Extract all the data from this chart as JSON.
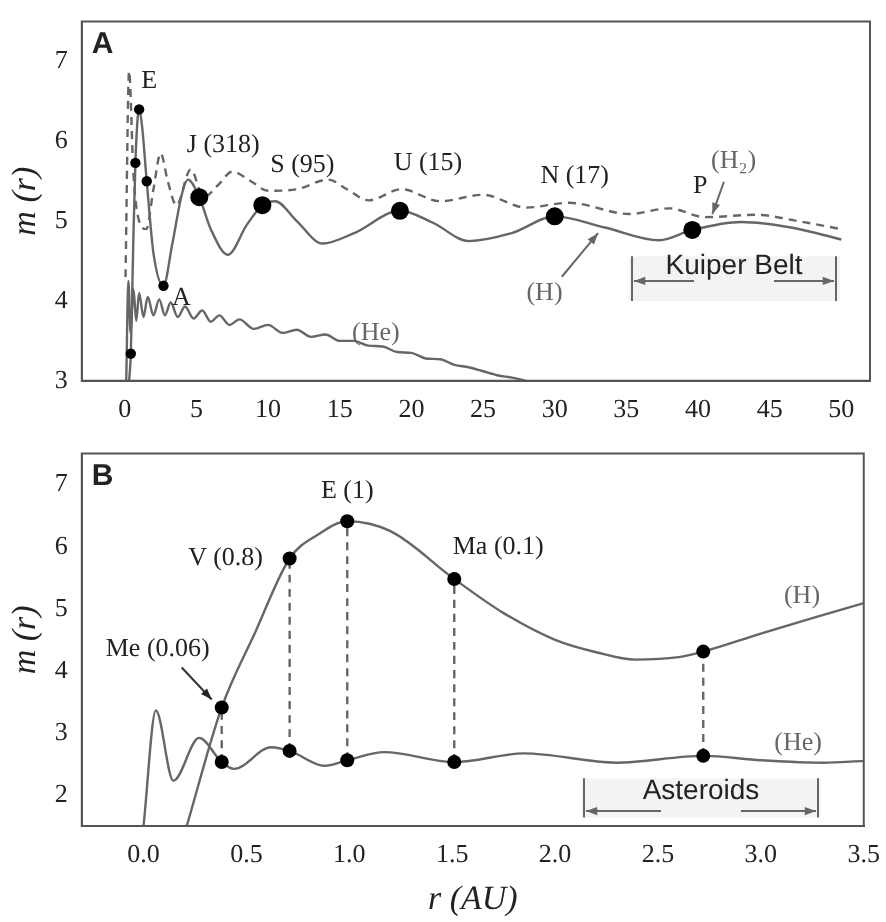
{
  "chart_data": [
    {
      "type": "line",
      "title": "A",
      "ylabel": "m (r)",
      "xlim": [
        -3,
        52
      ],
      "ylim": [
        3,
        7.5
      ],
      "xticks": [
        0,
        5,
        10,
        15,
        20,
        25,
        30,
        35,
        40,
        45,
        50
      ],
      "yticks": [
        3,
        4,
        5,
        6,
        7
      ],
      "grid": false,
      "legend": false,
      "series": [
        {
          "name": "(H)",
          "type": "line",
          "color": "#666666",
          "line_style": "solid",
          "x": [
            0.3,
            0.42,
            0.6,
            0.74,
            0.9,
            1.0,
            1.2,
            1.53,
            2.0,
            2.7,
            3.3,
            4.0,
            4.4,
            5.2,
            6.0,
            7.2,
            8.5,
            9.6,
            10.5,
            12.0,
            13.8,
            16.0,
            19.2,
            21.5,
            24.0,
            27.0,
            30.0,
            33.5,
            37.3,
            39.6,
            43.0,
            46.5,
            50
          ],
          "values": [
            3.0,
            3.34,
            4.8,
            5.73,
            6.3,
            6.4,
            6.2,
            5.5,
            4.6,
            4.19,
            4.7,
            5.35,
            5.52,
            5.3,
            4.9,
            4.58,
            4.95,
            5.2,
            5.25,
            5.0,
            4.72,
            4.85,
            5.13,
            4.98,
            4.75,
            4.85,
            5.06,
            4.92,
            4.76,
            4.89,
            4.99,
            4.92,
            4.77
          ]
        },
        {
          "name": "(H₂)",
          "type": "line",
          "color": "#666666",
          "line_style": "dashed",
          "x": [
            0.05,
            0.3,
            0.6,
            1.0,
            1.5,
            2.0,
            2.5,
            3.0,
            3.6,
            4.6,
            5.5,
            6.5,
            7.5,
            8.8,
            10.0,
            12.0,
            14.2,
            15.5,
            17.0,
            19.3,
            22.0,
            25.0,
            28.0,
            31.0,
            35.2,
            38.0,
            40.5,
            44.0,
            47.0,
            50
          ],
          "values": [
            4.3,
            6.88,
            5.6,
            5.0,
            4.9,
            5.4,
            5.85,
            5.5,
            5.2,
            5.65,
            5.3,
            5.45,
            5.62,
            5.5,
            5.38,
            5.4,
            5.52,
            5.4,
            5.26,
            5.4,
            5.25,
            5.33,
            5.17,
            5.23,
            5.09,
            5.16,
            5.05,
            5.08,
            5.0,
            4.9
          ]
        },
        {
          "name": "(He)",
          "type": "line",
          "color": "#666666",
          "line_style": "solid",
          "x": [
            0.1,
            0.25,
            0.4,
            0.6,
            0.8,
            1.0,
            1.3,
            1.6,
            2.0,
            2.4,
            2.8,
            3.2,
            3.7,
            4.2,
            4.8,
            5.4,
            6.0,
            6.6,
            7.3,
            8.0,
            9.0,
            10.0,
            11.0,
            12.0,
            13.0,
            14.0,
            15.0,
            16.0,
            17.0,
            18.0,
            19.0,
            20.0,
            21.0,
            22.0,
            23.0,
            24.0,
            25.0,
            26.0,
            27.0,
            28.0
          ],
          "values": [
            3.0,
            4.25,
            3.6,
            4.15,
            3.75,
            4.1,
            3.8,
            4.05,
            3.82,
            4.02,
            3.82,
            3.98,
            3.8,
            3.93,
            3.78,
            3.88,
            3.74,
            3.82,
            3.7,
            3.77,
            3.65,
            3.7,
            3.6,
            3.64,
            3.55,
            3.58,
            3.5,
            3.5,
            3.44,
            3.43,
            3.36,
            3.35,
            3.28,
            3.27,
            3.2,
            3.17,
            3.12,
            3.07,
            3.04,
            3.0
          ]
        },
        {
          "type": "scatter",
          "color": "#000000",
          "marker": "circle",
          "x": [
            0.42,
            0.74,
            1.0,
            1.53,
            2.7
          ],
          "values": [
            3.34,
            5.73,
            6.4,
            5.5,
            4.19
          ]
        },
        {
          "type": "scatter",
          "color": "#000000",
          "marker": "circle",
          "x": [
            5.2,
            9.6,
            19.2,
            30.0,
            39.6
          ],
          "values": [
            5.3,
            5.2,
            5.13,
            5.06,
            4.89
          ]
        }
      ],
      "annotations": [
        {
          "text": "E",
          "x": 1.0,
          "y": 6.4
        },
        {
          "text": "A",
          "x": 2.7,
          "y": 4.19
        },
        {
          "text": "J (318)",
          "x": 5.2,
          "y": 5.3
        },
        {
          "text": "S (95)",
          "x": 9.6,
          "y": 5.2
        },
        {
          "text": "U (15)",
          "x": 19.2,
          "y": 5.13
        },
        {
          "text": "N (17)",
          "x": 30.0,
          "y": 5.06
        },
        {
          "text": "P",
          "x": 39.6,
          "y": 4.89
        }
      ],
      "bands": [
        {
          "axis": "x",
          "from": 35.2,
          "to": 49.9,
          "label": "Kuiper Belt"
        }
      ]
    },
    {
      "type": "line",
      "title": "B",
      "xlabel": "r (AU)",
      "ylabel": "m (r)",
      "xlim": [
        -0.3,
        3.5
      ],
      "ylim": [
        1.5,
        7.5
      ],
      "xticks": [
        {
          "value": 0,
          "label": "0.0"
        },
        0.5,
        {
          "value": 1,
          "label": "1.0"
        },
        1.5,
        {
          "value": 2,
          "label": "2.0"
        },
        2.5,
        {
          "value": 3,
          "label": "3.0"
        },
        3.5
      ],
      "yticks": [
        2,
        3,
        4,
        5,
        6,
        7
      ],
      "grid": false,
      "legend": false,
      "series": [
        {
          "name": "(H)",
          "type": "line",
          "color": "#666666",
          "line_style": "solid",
          "x": [
            0.21,
            0.38,
            0.54,
            0.71,
            0.85,
            0.99,
            1.2,
            1.51,
            1.75,
            2.0,
            2.2,
            2.39,
            2.6,
            2.72,
            3.0,
            3.25,
            3.5
          ],
          "values": [
            1.5,
            3.41,
            4.6,
            5.81,
            6.2,
            6.41,
            6.25,
            5.48,
            4.93,
            4.5,
            4.3,
            4.18,
            4.22,
            4.31,
            4.6,
            4.85,
            5.09
          ]
        },
        {
          "name": "(He)",
          "type": "line",
          "color": "#666666",
          "line_style": "solid",
          "x": [
            0.0,
            0.06,
            0.145,
            0.27,
            0.38,
            0.44,
            0.62,
            0.71,
            0.88,
            0.99,
            1.17,
            1.51,
            1.85,
            2.3,
            2.72,
            3.0,
            3.3,
            3.5
          ],
          "values": [
            1.5,
            3.36,
            2.23,
            2.92,
            2.53,
            2.42,
            2.77,
            2.71,
            2.47,
            2.56,
            2.69,
            2.53,
            2.67,
            2.52,
            2.63,
            2.56,
            2.52,
            2.55
          ]
        },
        {
          "type": "scatter",
          "color": "#000000",
          "marker": "circle",
          "x": [
            0.38,
            0.71,
            0.99,
            1.51,
            2.72
          ],
          "values": [
            3.41,
            5.81,
            6.41,
            5.48,
            4.31
          ]
        },
        {
          "type": "scatter",
          "color": "#000000",
          "marker": "circle",
          "x": [
            0.38,
            0.71,
            0.99,
            1.51,
            2.72
          ],
          "values": [
            2.53,
            2.71,
            2.56,
            2.53,
            2.63
          ]
        },
        {
          "type": "line",
          "color": "#666666",
          "line_style": "dashed",
          "x": [
            0.38,
            0.38
          ],
          "values": [
            2.53,
            3.41
          ]
        },
        {
          "type": "line",
          "color": "#666666",
          "line_style": "dashed",
          "x": [
            0.71,
            0.71
          ],
          "values": [
            2.71,
            5.81
          ]
        },
        {
          "type": "line",
          "color": "#666666",
          "line_style": "dashed",
          "x": [
            0.99,
            0.99
          ],
          "values": [
            2.56,
            6.41
          ]
        },
        {
          "type": "line",
          "color": "#666666",
          "line_style": "dashed",
          "x": [
            1.51,
            1.51
          ],
          "values": [
            2.53,
            5.48
          ]
        },
        {
          "type": "line",
          "color": "#666666",
          "line_style": "dashed",
          "x": [
            2.72,
            2.72
          ],
          "values": [
            2.63,
            4.31
          ]
        }
      ],
      "annotations": [
        {
          "text": "Me (0.06)",
          "x": 0.38,
          "y": 3.41
        },
        {
          "text": "V (0.8)",
          "x": 0.71,
          "y": 5.81
        },
        {
          "text": "E (1)",
          "x": 0.99,
          "y": 6.41
        },
        {
          "text": "Ma (0.1)",
          "x": 1.51,
          "y": 5.48
        }
      ],
      "bands": [
        {
          "axis": "x",
          "from": 2.13,
          "to": 3.29,
          "label": "Asteroids"
        }
      ]
    }
  ]
}
